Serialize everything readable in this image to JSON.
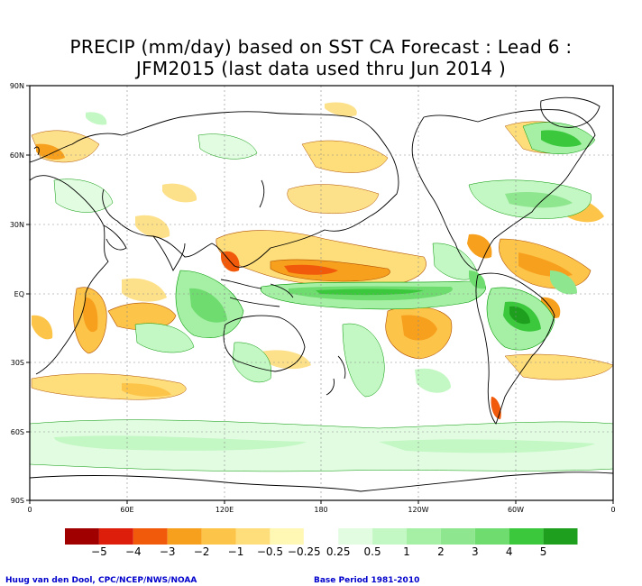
{
  "title": {
    "line1": "PRECIP (mm/day) based on SST CA Forecast : Lead 6 :",
    "line2": "JFM2015 (last data used thru Jun 2014 )"
  },
  "axes": {
    "lat_labels": [
      "90N",
      "60N",
      "30N",
      "EQ",
      "30S",
      "60S",
      "90S"
    ],
    "lon_labels": [
      "0",
      "60E",
      "120E",
      "180",
      "120W",
      "60W",
      "0"
    ]
  },
  "legend": {
    "colors": [
      "#a00000",
      "#dc1e0a",
      "#f05a0a",
      "#f7a01e",
      "#fdc44a",
      "#fede7a",
      "#fff7b4",
      "#ffffff",
      "#e2fce2",
      "#c3f7c3",
      "#a5f0a5",
      "#8ee68e",
      "#6fdc6f",
      "#3cc83c",
      "#1ea01e"
    ],
    "labels": [
      "−5",
      "−4",
      "−3",
      "−2",
      "−1",
      "−0.5",
      "−0.25",
      "0.25",
      "0.5",
      "1",
      "2",
      "3",
      "4",
      "5"
    ]
  },
  "credits": {
    "left": "Huug van den Dool, CPC/NCEP/NWS/NOAA",
    "right": "Base Period 1981-2010"
  }
}
